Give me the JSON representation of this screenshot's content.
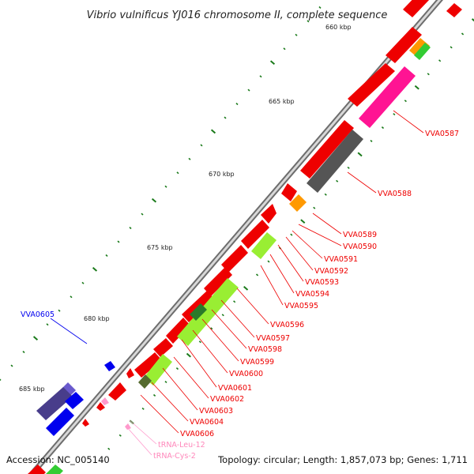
{
  "title": "Vibrio vulnificus YJ016 chromosome II, complete sequence",
  "accession": "Accession: NC_005140",
  "topology": "Topology: circular; Length: 1,857,073 bp; Genes: 1,711",
  "kbp_labels": [
    "660 kbp",
    "665 kbp",
    "670 kbp",
    "675 kbp",
    "680 kbp",
    "685 kbp"
  ],
  "genes": [
    "VVA0587",
    "VVA0588",
    "VVA0589",
    "VVA0590",
    "VVA0591",
    "VVA0592",
    "VVA0593",
    "VVA0594",
    "VVA0595",
    "VVA0596",
    "VVA0597",
    "VVA0598",
    "VVA0599",
    "VVA0600",
    "VVA0601",
    "VVA0602",
    "VVA0603",
    "VVA0604",
    "VVA0605",
    "VVA0606"
  ],
  "trnas": [
    "tRNA-Leu-12",
    "tRNA-Cys-2"
  ],
  "colors": {
    "cds": "#ff0000",
    "blue": "#0000ee",
    "trna": "#ff99cc",
    "backbone": "#888888",
    "tick": "#1a7a1a"
  }
}
